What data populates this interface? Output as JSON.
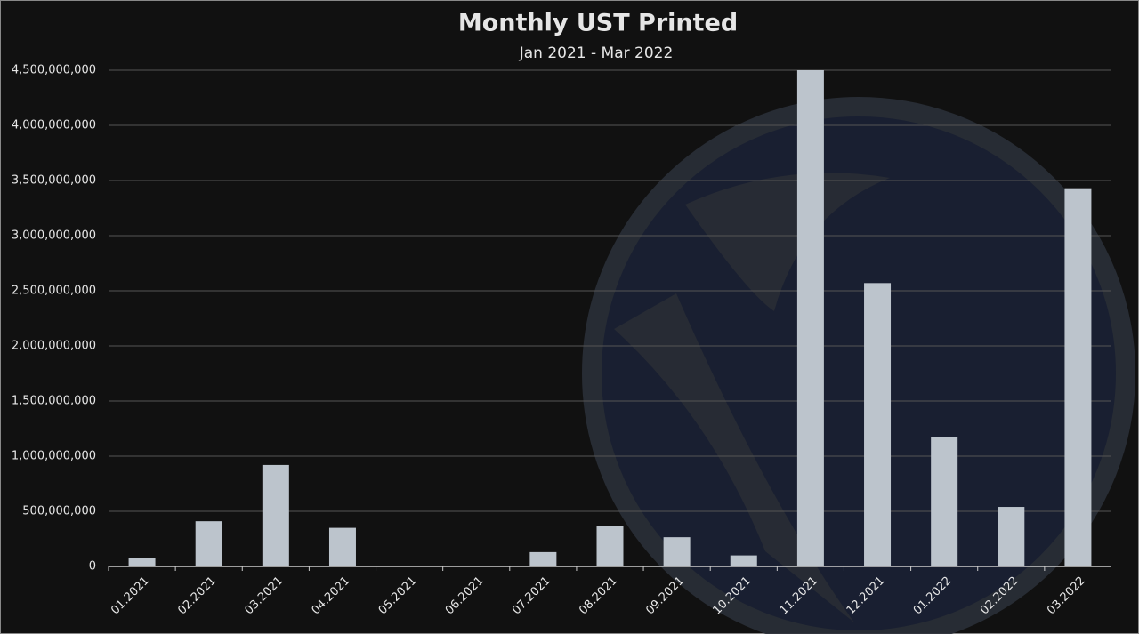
{
  "chart_data": {
    "type": "bar",
    "title": "Monthly UST Printed",
    "subtitle": "Jan 2021 - Mar 2022",
    "categories": [
      "01.2021",
      "02.2021",
      "03.2021",
      "04.2021",
      "05.2021",
      "06.2021",
      "07.2021",
      "08.2021",
      "09.2021",
      "10.2021",
      "11.2021",
      "12.2021",
      "01.2022",
      "02.2022",
      "03.2022"
    ],
    "values": [
      80000000,
      410000000,
      920000000,
      350000000,
      0,
      0,
      130000000,
      365000000,
      265000000,
      100000000,
      4500000000,
      2570000000,
      1170000000,
      540000000,
      3430000000
    ],
    "color": "#bcc4cc",
    "ylim": [
      0,
      4500000000
    ],
    "yticks": [
      0,
      {
        "value": 500000000,
        "label": "500,000,000"
      },
      {
        "value": 1000000000,
        "label": "1,000,000,000"
      },
      {
        "value": 1500000000,
        "label": "1,500,000,000"
      },
      {
        "value": 2000000000,
        "label": "2,000,000,000"
      },
      {
        "value": 2500000000,
        "label": "2,500,000,000"
      },
      {
        "value": 3000000000,
        "label": "3,000,000,000"
      },
      {
        "value": 3500000000,
        "label": "3,500,000,000"
      },
      {
        "value": 4000000000,
        "label": "4,000,000,000"
      },
      {
        "value": 4500000000,
        "label": "4,500,000,000"
      }
    ],
    "grid": true
  }
}
